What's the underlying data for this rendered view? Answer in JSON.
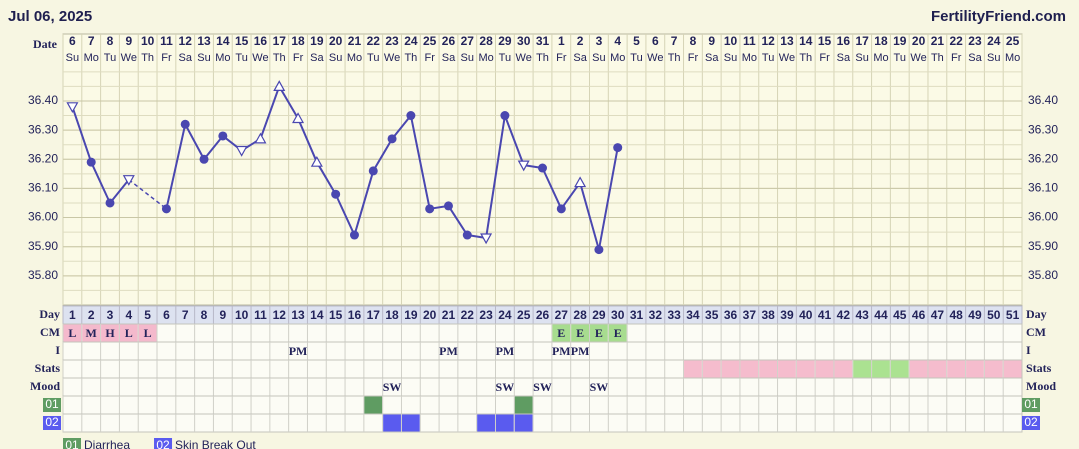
{
  "header": {
    "date": "Jul 06, 2025",
    "site": "FertilityFriend.com"
  },
  "chart_data": {
    "type": "line",
    "x_label": "Date",
    "color": "#4a47b0",
    "categories": [
      "6",
      "7",
      "8",
      "9",
      "10",
      "11",
      "12",
      "13",
      "14",
      "15",
      "16",
      "17",
      "18",
      "19",
      "20",
      "21",
      "22",
      "23",
      "24",
      "25",
      "26",
      "27",
      "28",
      "29",
      "30",
      "31",
      "1",
      "2",
      "3",
      "4",
      "5",
      "6",
      "7",
      "8",
      "9",
      "10",
      "11",
      "12",
      "13",
      "14",
      "15",
      "16",
      "17",
      "18",
      "19",
      "20",
      "21",
      "22",
      "23",
      "24",
      "25"
    ],
    "weekdays": [
      "Su",
      "Mo",
      "Tu",
      "We",
      "Th",
      "Fr",
      "Sa",
      "Su",
      "Mo",
      "Tu",
      "We",
      "Th",
      "Fr",
      "Sa",
      "Su",
      "Mo",
      "Tu",
      "We",
      "Th",
      "Fr",
      "Sa",
      "Su",
      "Mo",
      "Tu",
      "We",
      "Th",
      "Fr",
      "Sa",
      "Su",
      "Mo",
      "Tu",
      "We",
      "Th",
      "Fr",
      "Sa",
      "Su",
      "Mo",
      "Tu",
      "We",
      "Th",
      "Fr",
      "Sa",
      "Su",
      "Mo",
      "Tu",
      "We",
      "Th",
      "Fr",
      "Sa",
      "Su",
      "Mo"
    ],
    "values": [
      36.38,
      36.19,
      36.05,
      36.13,
      null,
      36.03,
      36.32,
      36.2,
      36.28,
      36.23,
      36.27,
      36.45,
      36.34,
      36.19,
      36.08,
      35.94,
      36.16,
      36.27,
      36.35,
      36.03,
      36.04,
      35.94,
      35.93,
      36.35,
      36.18,
      36.17,
      36.03,
      36.12,
      35.89,
      36.24,
      null,
      null,
      null,
      null,
      null,
      null,
      null,
      null,
      null,
      null,
      null,
      null,
      null,
      null,
      null,
      null,
      null,
      null,
      null,
      null,
      null
    ],
    "markers": [
      "open-down",
      "circle",
      "circle",
      "open-down",
      null,
      "circle",
      "circle",
      "circle",
      "circle",
      "open-down",
      "open-up",
      "open-up",
      "open-up",
      "open-up",
      "circle",
      "circle",
      "circle",
      "circle",
      "circle",
      "circle",
      "circle",
      "circle",
      "open-down",
      "circle",
      "open-down",
      "circle",
      "circle",
      "open-up",
      "circle",
      "circle",
      null,
      null,
      null,
      null,
      null,
      null,
      null,
      null,
      null,
      null,
      null,
      null,
      null,
      null,
      null,
      null,
      null,
      null,
      null,
      null,
      null
    ],
    "ylim": [
      35.7,
      36.52
    ],
    "yticks": [
      {
        "value": 35.8,
        "label": "35.80"
      },
      {
        "value": 35.9,
        "label": "35.90"
      },
      {
        "value": 36.0,
        "label": "36.00"
      },
      {
        "value": 36.1,
        "label": "36.10"
      },
      {
        "value": 36.2,
        "label": "36.20"
      },
      {
        "value": 36.3,
        "label": "36.30"
      },
      {
        "value": 36.4,
        "label": "36.40"
      }
    ],
    "grid": true
  },
  "table": {
    "day_label": "Day",
    "days": [
      1,
      2,
      3,
      4,
      5,
      6,
      7,
      8,
      9,
      10,
      11,
      12,
      13,
      14,
      15,
      16,
      17,
      18,
      19,
      20,
      21,
      22,
      23,
      24,
      25,
      26,
      27,
      28,
      29,
      30,
      31,
      32,
      33,
      34,
      35,
      36,
      37,
      38,
      39,
      40,
      41,
      42,
      43,
      44,
      45,
      46,
      47,
      48,
      49,
      50,
      51
    ],
    "rows": [
      {
        "label": "CM",
        "cells": [
          {
            "text": "L",
            "color": "#f4b9cc"
          },
          {
            "text": "M",
            "color": "#f4b9cc"
          },
          {
            "text": "H",
            "color": "#f4b9cc"
          },
          {
            "text": "L",
            "color": "#f4b9cc"
          },
          {
            "text": "L",
            "color": "#f4b9cc"
          },
          null,
          null,
          null,
          null,
          null,
          null,
          null,
          null,
          null,
          null,
          null,
          null,
          null,
          null,
          null,
          null,
          null,
          null,
          null,
          null,
          null,
          {
            "text": "E",
            "color": "#a7dc8f"
          },
          {
            "text": "E",
            "color": "#a7dc8f"
          },
          {
            "text": "E",
            "color": "#a7dc8f"
          },
          {
            "text": "E",
            "color": "#a7dc8f"
          },
          null,
          null,
          null,
          null,
          null,
          null,
          null,
          null,
          null,
          null,
          null,
          null,
          null,
          null,
          null,
          null,
          null,
          null,
          null,
          null,
          null
        ]
      },
      {
        "label": "I",
        "cells": [
          null,
          null,
          null,
          null,
          null,
          null,
          null,
          null,
          null,
          null,
          null,
          null,
          {
            "text": "PM"
          },
          null,
          null,
          null,
          null,
          null,
          null,
          null,
          {
            "text": "PM"
          },
          null,
          null,
          {
            "text": "PM"
          },
          null,
          null,
          {
            "text": "PM"
          },
          {
            "text": "PM"
          },
          null,
          null,
          null,
          null,
          null,
          null,
          null,
          null,
          null,
          null,
          null,
          null,
          null,
          null,
          null,
          null,
          null,
          null,
          null,
          null,
          null,
          null,
          null
        ]
      },
      {
        "label": "Stats",
        "cells": [
          null,
          null,
          null,
          null,
          null,
          null,
          null,
          null,
          null,
          null,
          null,
          null,
          null,
          null,
          null,
          null,
          null,
          null,
          null,
          null,
          null,
          null,
          null,
          null,
          null,
          null,
          null,
          null,
          null,
          null,
          null,
          null,
          null,
          {
            "color": "#f5bccd"
          },
          {
            "color": "#f5bccd"
          },
          {
            "color": "#f5bccd"
          },
          {
            "color": "#f5bccd"
          },
          {
            "color": "#f5bccd"
          },
          {
            "color": "#f5bccd"
          },
          {
            "color": "#f5bccd"
          },
          {
            "color": "#f5bccd"
          },
          {
            "color": "#f5bccd"
          },
          {
            "color": "#abe291"
          },
          {
            "color": "#abe291"
          },
          {
            "color": "#abe291"
          },
          {
            "color": "#f5bccd"
          },
          {
            "color": "#f5bccd"
          },
          {
            "color": "#f5bccd"
          },
          {
            "color": "#f5bccd"
          },
          {
            "color": "#f5bccd"
          },
          {
            "color": "#f5bccd"
          }
        ]
      },
      {
        "label": "Mood",
        "cells": [
          null,
          null,
          null,
          null,
          null,
          null,
          null,
          null,
          null,
          null,
          null,
          null,
          null,
          null,
          null,
          null,
          null,
          {
            "text": "SW"
          },
          null,
          null,
          null,
          null,
          null,
          {
            "text": "SW"
          },
          null,
          {
            "text": "SW"
          },
          null,
          null,
          {
            "text": "SW"
          },
          null,
          null,
          null,
          null,
          null,
          null,
          null,
          null,
          null,
          null,
          null,
          null,
          null,
          null,
          null,
          null,
          null,
          null,
          null,
          null,
          null,
          null
        ]
      },
      {
        "label": "01",
        "label_color": "#5f9c62",
        "cells": [
          null,
          null,
          null,
          null,
          null,
          null,
          null,
          null,
          null,
          null,
          null,
          null,
          null,
          null,
          null,
          null,
          {
            "color": "#5f9c62"
          },
          null,
          null,
          null,
          null,
          null,
          null,
          null,
          {
            "color": "#5f9c62"
          },
          null,
          null,
          null,
          null,
          null,
          null,
          null,
          null,
          null,
          null,
          null,
          null,
          null,
          null,
          null,
          null,
          null,
          null,
          null,
          null,
          null,
          null,
          null,
          null,
          null,
          null
        ]
      },
      {
        "label": "02",
        "label_color": "#5a5bef",
        "cells": [
          null,
          null,
          null,
          null,
          null,
          null,
          null,
          null,
          null,
          null,
          null,
          null,
          null,
          null,
          null,
          null,
          null,
          {
            "color": "#5a5bef"
          },
          {
            "color": "#5a5bef"
          },
          null,
          null,
          null,
          {
            "color": "#5a5bef"
          },
          {
            "color": "#5a5bef"
          },
          {
            "color": "#5a5bef"
          },
          null,
          null,
          null,
          null,
          null,
          null,
          null,
          null,
          null,
          null,
          null,
          null,
          null,
          null,
          null,
          null,
          null,
          null,
          null,
          null,
          null,
          null,
          null,
          null,
          null,
          null
        ]
      }
    ],
    "legend": [
      {
        "code": "01",
        "text": "Diarrhea",
        "color": "#5f9c62"
      },
      {
        "code": "02",
        "text": "Skin Break Out",
        "color": "#5a5bef"
      }
    ]
  }
}
